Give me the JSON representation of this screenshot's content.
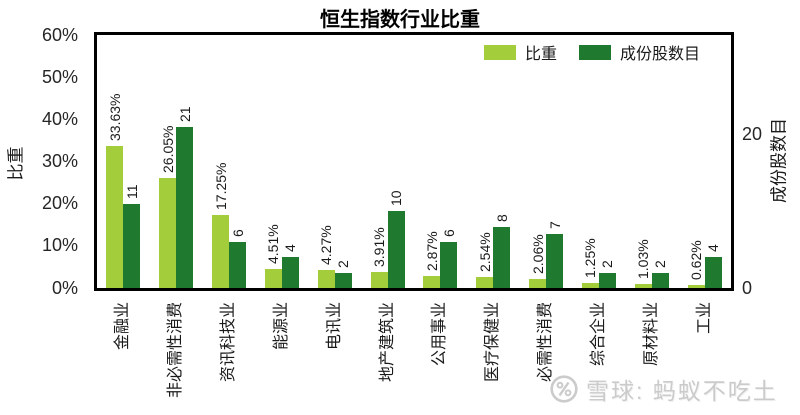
{
  "title": "恒生指数行业比重",
  "colors": {
    "weight": "#a4cd3c",
    "count": "#1f7a30",
    "axis": "#000000",
    "text": "#1a1a1a",
    "watermark": "#cbcbcb"
  },
  "legend": {
    "items": [
      {
        "label": "比重",
        "color_key": "weight"
      },
      {
        "label": "成份股数目",
        "color_key": "count"
      }
    ]
  },
  "left_axis": {
    "title": "比重",
    "ticks": [
      {
        "label": "60%",
        "value": 60
      },
      {
        "label": "50%",
        "value": 50
      },
      {
        "label": "40%",
        "value": 40
      },
      {
        "label": "30%",
        "value": 30
      },
      {
        "label": "20%",
        "value": 20
      },
      {
        "label": "10%",
        "value": 10
      },
      {
        "label": "0%",
        "value": 0
      }
    ],
    "min": 0,
    "max": 60
  },
  "right_axis": {
    "title": "成份股数目",
    "ticks": [
      {
        "label": "20",
        "value": 20
      },
      {
        "label": "0",
        "value": 0
      }
    ],
    "min": 0,
    "max": 33
  },
  "watermark": {
    "text": "雪球: 蚂蚁不吃土",
    "icon": "xueqiu-logo"
  },
  "chart_data": {
    "type": "bar",
    "title": "恒生指数行业比重",
    "categories": [
      "金融业",
      "非必需性消费",
      "资讯科技业",
      "能源业",
      "电讯业",
      "地产建筑业",
      "公用事业",
      "医疗保健业",
      "必需性消费",
      "综合企业",
      "原材料业",
      "工业"
    ],
    "series": [
      {
        "name": "比重",
        "axis": "left",
        "unit": "%",
        "values": [
          33.63,
          26.05,
          17.25,
          4.51,
          4.27,
          3.91,
          2.87,
          2.54,
          2.06,
          1.25,
          1.03,
          0.62
        ],
        "labels": [
          "33.63%",
          "26.05%",
          "17.25%",
          "4.51%",
          "4.27%",
          "3.91%",
          "2.87%",
          "2.54%",
          "2.06%",
          "1.25%",
          "1.03%",
          "0.62%"
        ]
      },
      {
        "name": "成份股数目",
        "axis": "right",
        "unit": "",
        "values": [
          11,
          21,
          6,
          4,
          2,
          10,
          6,
          8,
          7,
          2,
          2,
          4
        ],
        "labels": [
          "11",
          "21",
          "6",
          "4",
          "2",
          "10",
          "6",
          "8",
          "7",
          "2",
          "2",
          "4"
        ]
      }
    ],
    "left_axis": {
      "label": "比重",
      "range": [
        0,
        60
      ],
      "tick_step": 10,
      "format": "percent"
    },
    "right_axis": {
      "label": "成份股数目",
      "range": [
        0,
        33
      ],
      "visible_ticks": [
        0,
        20
      ]
    },
    "legend_position": "top-right-inside",
    "grid": false,
    "bar_label_rotation": -90,
    "category_label_rotation": -90
  }
}
